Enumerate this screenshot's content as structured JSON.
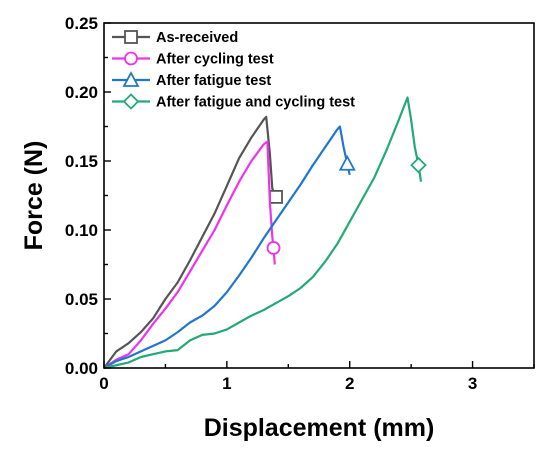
{
  "chart_data": {
    "type": "line",
    "title": "",
    "xlabel": "Displacement (mm)",
    "ylabel": "Force (N)",
    "xlim": [
      0,
      3.5
    ],
    "ylim": [
      0,
      0.25
    ],
    "x_ticks": [
      "0",
      "1",
      "2",
      "3"
    ],
    "y_ticks": [
      "0.00",
      "0.05",
      "0.10",
      "0.15",
      "0.20",
      "0.25"
    ],
    "grid": false,
    "legend_position": "top-left",
    "series": [
      {
        "name": "As-received",
        "color": "#555555",
        "marker": "square",
        "points": [
          [
            0,
            0
          ],
          [
            0.1,
            0.012
          ],
          [
            0.2,
            0.018
          ],
          [
            0.3,
            0.026
          ],
          [
            0.4,
            0.036
          ],
          [
            0.5,
            0.05
          ],
          [
            0.6,
            0.062
          ],
          [
            0.7,
            0.078
          ],
          [
            0.8,
            0.095
          ],
          [
            0.9,
            0.112
          ],
          [
            1.0,
            0.132
          ],
          [
            1.1,
            0.152
          ],
          [
            1.2,
            0.167
          ],
          [
            1.3,
            0.18
          ],
          [
            1.32,
            0.182
          ],
          [
            1.35,
            0.155
          ],
          [
            1.37,
            0.13
          ],
          [
            1.4,
            0.124
          ],
          [
            1.43,
            0.122
          ]
        ],
        "marker_points": [
          [
            1.4,
            0.124
          ]
        ]
      },
      {
        "name": "After cycling test",
        "color": "#ee33ee",
        "marker": "circle",
        "points": [
          [
            0,
            0
          ],
          [
            0.1,
            0.006
          ],
          [
            0.2,
            0.01
          ],
          [
            0.3,
            0.02
          ],
          [
            0.4,
            0.032
          ],
          [
            0.5,
            0.043
          ],
          [
            0.6,
            0.055
          ],
          [
            0.7,
            0.07
          ],
          [
            0.8,
            0.085
          ],
          [
            0.9,
            0.1
          ],
          [
            1.0,
            0.118
          ],
          [
            1.1,
            0.135
          ],
          [
            1.2,
            0.15
          ],
          [
            1.3,
            0.162
          ],
          [
            1.33,
            0.164
          ],
          [
            1.35,
            0.12
          ],
          [
            1.37,
            0.095
          ],
          [
            1.38,
            0.087
          ],
          [
            1.39,
            0.075
          ]
        ],
        "marker_points": [
          [
            1.38,
            0.087
          ]
        ]
      },
      {
        "name": "After fatigue test",
        "color": "#2277cc",
        "marker": "triangle",
        "points": [
          [
            0,
            0
          ],
          [
            0.1,
            0.005
          ],
          [
            0.2,
            0.008
          ],
          [
            0.3,
            0.012
          ],
          [
            0.4,
            0.016
          ],
          [
            0.5,
            0.02
          ],
          [
            0.6,
            0.026
          ],
          [
            0.7,
            0.033
          ],
          [
            0.8,
            0.038
          ],
          [
            0.9,
            0.045
          ],
          [
            1.0,
            0.055
          ],
          [
            1.1,
            0.067
          ],
          [
            1.2,
            0.08
          ],
          [
            1.3,
            0.094
          ],
          [
            1.4,
            0.107
          ],
          [
            1.5,
            0.12
          ],
          [
            1.6,
            0.133
          ],
          [
            1.7,
            0.147
          ],
          [
            1.8,
            0.16
          ],
          [
            1.9,
            0.173
          ],
          [
            1.92,
            0.175
          ],
          [
            1.95,
            0.16
          ],
          [
            1.98,
            0.148
          ],
          [
            2.0,
            0.14
          ]
        ],
        "marker_points": [
          [
            1.98,
            0.148
          ]
        ]
      },
      {
        "name": "After fatigue and cycling test",
        "color": "#22aa77",
        "marker": "diamond",
        "points": [
          [
            0,
            0
          ],
          [
            0.2,
            0.004
          ],
          [
            0.3,
            0.008
          ],
          [
            0.4,
            0.01
          ],
          [
            0.5,
            0.012
          ],
          [
            0.6,
            0.013
          ],
          [
            0.7,
            0.02
          ],
          [
            0.8,
            0.024
          ],
          [
            0.9,
            0.025
          ],
          [
            1.0,
            0.028
          ],
          [
            1.1,
            0.033
          ],
          [
            1.2,
            0.038
          ],
          [
            1.3,
            0.042
          ],
          [
            1.4,
            0.047
          ],
          [
            1.5,
            0.052
          ],
          [
            1.6,
            0.058
          ],
          [
            1.7,
            0.066
          ],
          [
            1.8,
            0.077
          ],
          [
            1.9,
            0.09
          ],
          [
            2.0,
            0.106
          ],
          [
            2.1,
            0.122
          ],
          [
            2.2,
            0.138
          ],
          [
            2.3,
            0.158
          ],
          [
            2.4,
            0.18
          ],
          [
            2.47,
            0.196
          ],
          [
            2.5,
            0.18
          ],
          [
            2.53,
            0.16
          ],
          [
            2.56,
            0.147
          ],
          [
            2.58,
            0.135
          ]
        ],
        "marker_points": [
          [
            2.56,
            0.147
          ]
        ]
      }
    ]
  }
}
